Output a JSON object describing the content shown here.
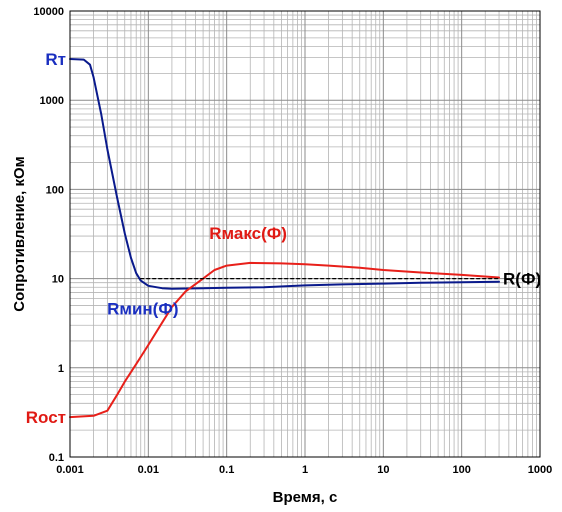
{
  "colors": {
    "blue_series": "#0a1a8c",
    "red_series": "#e8201a",
    "ref_line": "#000000",
    "label_blue": "#1a2fc0",
    "label_red": "#e01a14",
    "grid": "#b4b4b4",
    "frame": "#000000"
  },
  "chart_data": {
    "type": "line",
    "xlabel": "Время, с",
    "ylabel": "Сопротивление, кОм",
    "x_scale": "log",
    "y_scale": "log",
    "xlim": [
      0.001,
      1000
    ],
    "ylim": [
      0.1,
      10000
    ],
    "grid": true,
    "x_ticks": [
      0.001,
      0.01,
      0.1,
      1,
      10,
      100,
      1000
    ],
    "x_tick_labels": [
      "0.001",
      "0.01",
      "0.1",
      "1",
      "10",
      "100",
      "1000"
    ],
    "y_ticks": [
      0.1,
      1,
      10,
      100,
      1000,
      10000
    ],
    "y_tick_labels": [
      "0.1",
      "1",
      "10",
      "100",
      "1000",
      "10000"
    ],
    "series": [
      {
        "name": "Rмин(Ф)",
        "color": "#0a1a8c",
        "line_style": "solid",
        "points": [
          [
            0.001,
            2900
          ],
          [
            0.0015,
            2850
          ],
          [
            0.0018,
            2500
          ],
          [
            0.002,
            1800
          ],
          [
            0.0025,
            700
          ],
          [
            0.003,
            280
          ],
          [
            0.004,
            80
          ],
          [
            0.005,
            32
          ],
          [
            0.006,
            17
          ],
          [
            0.007,
            11.5
          ],
          [
            0.008,
            9.5
          ],
          [
            0.01,
            8.3
          ],
          [
            0.015,
            7.8
          ],
          [
            0.02,
            7.7
          ],
          [
            0.05,
            7.8
          ],
          [
            0.1,
            7.9
          ],
          [
            0.3,
            8.0
          ],
          [
            1,
            8.4
          ],
          [
            3,
            8.6
          ],
          [
            10,
            8.8
          ],
          [
            30,
            9.0
          ],
          [
            100,
            9.1
          ],
          [
            300,
            9.2
          ]
        ]
      },
      {
        "name": "Rмакс(Ф)",
        "color": "#e8201a",
        "line_style": "solid",
        "points": [
          [
            0.001,
            0.28
          ],
          [
            0.002,
            0.29
          ],
          [
            0.003,
            0.33
          ],
          [
            0.004,
            0.5
          ],
          [
            0.005,
            0.7
          ],
          [
            0.007,
            1.1
          ],
          [
            0.01,
            1.8
          ],
          [
            0.015,
            3.2
          ],
          [
            0.02,
            4.8
          ],
          [
            0.03,
            7.2
          ],
          [
            0.05,
            10.0
          ],
          [
            0.07,
            12.5
          ],
          [
            0.1,
            14.0
          ],
          [
            0.2,
            15.0
          ],
          [
            0.5,
            14.8
          ],
          [
            1,
            14.5
          ],
          [
            2,
            14.0
          ],
          [
            5,
            13.2
          ],
          [
            10,
            12.5
          ],
          [
            30,
            11.7
          ],
          [
            100,
            11.0
          ],
          [
            300,
            10.3
          ]
        ]
      },
      {
        "name": "R(Ф)",
        "color": "#000000",
        "line_style": "dashed",
        "points": [
          [
            0.008,
            10
          ],
          [
            300,
            10
          ]
        ]
      }
    ],
    "annotations": [
      {
        "text": "Rт",
        "x": 0.001,
        "y": 2900,
        "color": "#1a2fc0",
        "side": "left"
      },
      {
        "text": "Rост",
        "x": 0.001,
        "y": 0.28,
        "color": "#e01a14",
        "side": "left"
      },
      {
        "text": "Rмакс(Ф)",
        "x": 0.06,
        "y": 25,
        "color": "#e01a14",
        "side": "above"
      },
      {
        "text": "Rмин(Ф)",
        "x": 0.0085,
        "y": 5.7,
        "color": "#1a2fc0",
        "side": "below"
      },
      {
        "text": "R(Ф)",
        "x": 300,
        "y": 10,
        "color": "#000000",
        "side": "right"
      }
    ]
  }
}
